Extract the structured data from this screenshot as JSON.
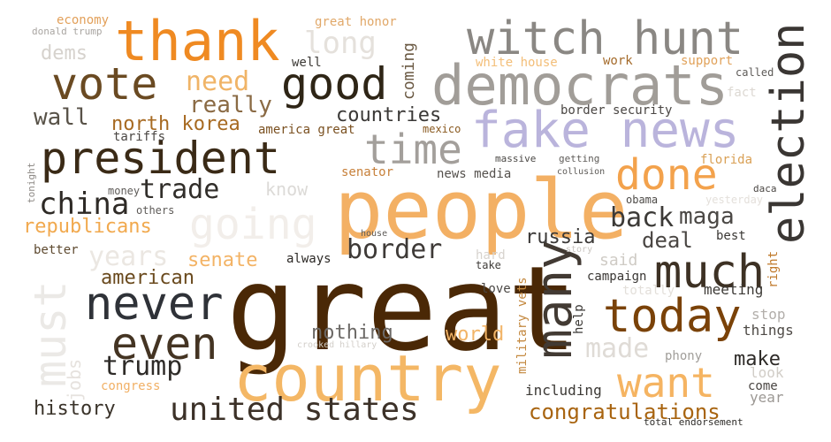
{
  "words": [
    {
      "id": "great",
      "text": "great",
      "color": "#4a2806",
      "size": 132,
      "rotate": false
    },
    {
      "id": "people",
      "text": "people",
      "color": "#f3b064",
      "size": 92,
      "rotate": false
    },
    {
      "id": "country",
      "text": "country",
      "color": "#f4b765",
      "size": 72,
      "rotate": false
    },
    {
      "id": "thank",
      "text": "thank",
      "color": "#ef8a22",
      "size": 62,
      "rotate": false
    },
    {
      "id": "democrats",
      "text": "democrats",
      "color": "#a19d98",
      "size": 62,
      "rotate": false
    },
    {
      "id": "fake_news",
      "text": "fake news",
      "color": "#bab4dc",
      "size": 56,
      "rotate": false
    },
    {
      "id": "witch_hunt",
      "text": "witch hunt",
      "color": "#8a8783",
      "size": 52,
      "rotate": false
    },
    {
      "id": "president",
      "text": "president",
      "color": "#3a2a16",
      "size": 50,
      "rotate": false
    },
    {
      "id": "vote",
      "text": "vote",
      "color": "#6a4a22",
      "size": 50,
      "rotate": false
    },
    {
      "id": "good",
      "text": "good",
      "color": "#2e2516",
      "size": 50,
      "rotate": false
    },
    {
      "id": "election",
      "text": "election",
      "color": "#3a3633",
      "size": 52,
      "rotate": true
    },
    {
      "id": "many",
      "text": "many",
      "color": "#423a33",
      "size": 56,
      "rotate": true
    },
    {
      "id": "much",
      "text": "much",
      "color": "#3d3124",
      "size": 52,
      "rotate": false
    },
    {
      "id": "today",
      "text": "today",
      "color": "#7a4208",
      "size": 52,
      "rotate": false
    },
    {
      "id": "never",
      "text": "never",
      "color": "#2f3238",
      "size": 52,
      "rotate": false
    },
    {
      "id": "even",
      "text": "even",
      "color": "#443423",
      "size": 50,
      "rotate": false
    },
    {
      "id": "must",
      "text": "must",
      "color": "#ebe9e6",
      "size": 50,
      "rotate": true
    },
    {
      "id": "time",
      "text": "time",
      "color": "#a39f9b",
      "size": 46,
      "rotate": false
    },
    {
      "id": "done",
      "text": "done",
      "color": "#f3a24c",
      "size": 48,
      "rotate": false
    },
    {
      "id": "going",
      "text": "going",
      "color": "#f2eeea",
      "size": 48,
      "rotate": false
    },
    {
      "id": "want",
      "text": "want",
      "color": "#f5b462",
      "size": 46,
      "rotate": false
    },
    {
      "id": "united_states",
      "text": "united states",
      "color": "#3c3128",
      "size": 36,
      "rotate": false
    },
    {
      "id": "long",
      "text": "long",
      "color": "#e5e1dc",
      "size": 34,
      "rotate": false
    },
    {
      "id": "need",
      "text": "need",
      "color": "#f0b467",
      "size": 30,
      "rotate": false
    },
    {
      "id": "really",
      "text": "really",
      "color": "#8a6a44",
      "size": 26,
      "rotate": false
    },
    {
      "id": "wall",
      "text": "wall",
      "color": "#585248",
      "size": 26,
      "rotate": false
    },
    {
      "id": "north_korea",
      "text": "north korea",
      "color": "#a76a22",
      "size": 22,
      "rotate": false
    },
    {
      "id": "countries",
      "text": "countries",
      "color": "#3a3836",
      "size": 22,
      "rotate": false
    },
    {
      "id": "china",
      "text": "china",
      "color": "#2e2a26",
      "size": 34,
      "rotate": false
    },
    {
      "id": "trade",
      "text": "trade",
      "color": "#312e2a",
      "size": 30,
      "rotate": false
    },
    {
      "id": "know",
      "text": "know",
      "color": "#dcdad7",
      "size": 20,
      "rotate": false
    },
    {
      "id": "back",
      "text": "back",
      "color": "#3c3a37",
      "size": 30,
      "rotate": false
    },
    {
      "id": "maga",
      "text": "maga",
      "color": "#4b4845",
      "size": 26,
      "rotate": false
    },
    {
      "id": "border",
      "text": "border",
      "color": "#3e3a37",
      "size": 30,
      "rotate": false
    },
    {
      "id": "deal",
      "text": "deal",
      "color": "#4a4643",
      "size": 24,
      "rotate": false
    },
    {
      "id": "russia",
      "text": "russia",
      "color": "#3a3836",
      "size": 22,
      "rotate": false
    },
    {
      "id": "republicans",
      "text": "republicans",
      "color": "#f1a94e",
      "size": 22,
      "rotate": false
    },
    {
      "id": "years",
      "text": "years",
      "color": "#ebe7e2",
      "size": 30,
      "rotate": false
    },
    {
      "id": "senate",
      "text": "senate",
      "color": "#f3b365",
      "size": 22,
      "rotate": false
    },
    {
      "id": "american",
      "text": "american",
      "color": "#6a4a1e",
      "size": 22,
      "rotate": false
    },
    {
      "id": "trump",
      "text": "trump",
      "color": "#2e2b28",
      "size": 30,
      "rotate": false
    },
    {
      "id": "nothing",
      "text": "nothing",
      "color": "#6c6966",
      "size": 22,
      "rotate": false
    },
    {
      "id": "world",
      "text": "world",
      "color": "#f2b467",
      "size": 22,
      "rotate": false
    },
    {
      "id": "made",
      "text": "made",
      "color": "#dfdbd6",
      "size": 30,
      "rotate": false
    },
    {
      "id": "said",
      "text": "said",
      "color": "#cfcbc5",
      "size": 18,
      "rotate": false
    },
    {
      "id": "campaign",
      "text": "campaign",
      "color": "#3a3734",
      "size": 14,
      "rotate": false
    },
    {
      "id": "meeting",
      "text": "meeting",
      "color": "#3c3935",
      "size": 16,
      "rotate": false
    },
    {
      "id": "history",
      "text": "history",
      "color": "#3a332a",
      "size": 22,
      "rotate": false
    },
    {
      "id": "jobs",
      "text": "jobs",
      "color": "#e6e2de",
      "size": 20,
      "rotate": true
    },
    {
      "id": "congress",
      "text": "congress",
      "color": "#f1b065",
      "size": 14,
      "rotate": false
    },
    {
      "id": "congratulations",
      "text": "congratulations",
      "color": "#a86410",
      "size": 24,
      "rotate": false
    },
    {
      "id": "total_endorsement",
      "text": "total endorsement",
      "color": "#2e2c29",
      "size": 11,
      "rotate": false
    },
    {
      "id": "make",
      "text": "make",
      "color": "#2d2a27",
      "size": 22,
      "rotate": false
    },
    {
      "id": "come",
      "text": "come",
      "color": "#4a4643",
      "size": 14,
      "rotate": false
    },
    {
      "id": "year",
      "text": "year",
      "color": "#9c9894",
      "size": 16,
      "rotate": false
    },
    {
      "id": "look",
      "text": "look",
      "color": "#d1cdc7",
      "size": 16,
      "rotate": false
    },
    {
      "id": "phony",
      "text": "phony",
      "color": "#a19e9a",
      "size": 14,
      "rotate": false
    },
    {
      "id": "including",
      "text": "including",
      "color": "#3c3935",
      "size": 16,
      "rotate": false
    },
    {
      "id": "things",
      "text": "things",
      "color": "#4e4a46",
      "size": 16,
      "rotate": false
    },
    {
      "id": "stop",
      "text": "stop",
      "color": "#b2aeaa",
      "size": 16,
      "rotate": false
    },
    {
      "id": "help",
      "text": "help",
      "color": "#3a3734",
      "size": 14,
      "rotate": true
    },
    {
      "id": "military_vets",
      "text": "military vets",
      "color": "#c48940",
      "size": 14,
      "rotate": true
    },
    {
      "id": "love",
      "text": "love",
      "color": "#4a4744",
      "size": 14,
      "rotate": false
    },
    {
      "id": "take",
      "text": "take",
      "color": "#3f3c39",
      "size": 12,
      "rotate": false
    },
    {
      "id": "hard",
      "text": "hard",
      "color": "#d7d3ce",
      "size": 14,
      "rotate": false
    },
    {
      "id": "story",
      "text": "story",
      "color": "#c9c5c0",
      "size": 10,
      "rotate": false
    },
    {
      "id": "totally",
      "text": "totally",
      "color": "#e3dfda",
      "size": 14,
      "rotate": false
    },
    {
      "id": "always",
      "text": "always",
      "color": "#2c2926",
      "size": 14,
      "rotate": false
    },
    {
      "id": "crooked_hillary",
      "text": "crooked hillary",
      "color": "#d3cfca",
      "size": 10,
      "rotate": false
    },
    {
      "id": "better",
      "text": "better",
      "color": "#5e4a30",
      "size": 14,
      "rotate": false
    },
    {
      "id": "house",
      "text": "house",
      "color": "#5e5b58",
      "size": 10,
      "rotate": false
    },
    {
      "id": "others",
      "text": "others",
      "color": "#5e5b58",
      "size": 12,
      "rotate": false
    },
    {
      "id": "money",
      "text": "money",
      "color": "#5e5b58",
      "size": 12,
      "rotate": false
    },
    {
      "id": "tonight",
      "text": "tonight",
      "color": "#8d8985",
      "size": 11,
      "rotate": true
    },
    {
      "id": "tariffs",
      "text": "tariffs",
      "color": "#4a4643",
      "size": 14,
      "rotate": false
    },
    {
      "id": "america_great",
      "text": "america great",
      "color": "#7a5020",
      "size": 14,
      "rotate": false
    },
    {
      "id": "mexico",
      "text": "mexico",
      "color": "#8a5a20",
      "size": 12,
      "rotate": false
    },
    {
      "id": "senator",
      "text": "senator",
      "color": "#c7803a",
      "size": 14,
      "rotate": false
    },
    {
      "id": "news_media",
      "text": "news media",
      "color": "#55514d",
      "size": 14,
      "rotate": false
    },
    {
      "id": "massive",
      "text": "massive",
      "color": "#4a4744",
      "size": 11,
      "rotate": false
    },
    {
      "id": "getting",
      "text": "getting",
      "color": "#5e5b58",
      "size": 11,
      "rotate": false
    },
    {
      "id": "collusion",
      "text": "collusion",
      "color": "#5e5b58",
      "size": 10,
      "rotate": false
    },
    {
      "id": "obama",
      "text": "obama",
      "color": "#4e4b48",
      "size": 12,
      "rotate": false
    },
    {
      "id": "yesterday",
      "text": "yesterday",
      "color": "#e4e0db",
      "size": 12,
      "rotate": false
    },
    {
      "id": "florida",
      "text": "florida",
      "color": "#d9a055",
      "size": 14,
      "rotate": false
    },
    {
      "id": "daca",
      "text": "daca",
      "color": "#4a4643",
      "size": 11,
      "rotate": false
    },
    {
      "id": "best",
      "text": "best",
      "color": "#3a3734",
      "size": 14,
      "rotate": false
    },
    {
      "id": "right",
      "text": "right",
      "color": "#c07a2c",
      "size": 14,
      "rotate": true
    },
    {
      "id": "border_security",
      "text": "border security",
      "color": "#4a4643",
      "size": 14,
      "rotate": false
    },
    {
      "id": "fact",
      "text": "fact",
      "color": "#dcd8d2",
      "size": 14,
      "rotate": false
    },
    {
      "id": "called",
      "text": "called",
      "color": "#5e5b58",
      "size": 12,
      "rotate": false
    },
    {
      "id": "support",
      "text": "support",
      "color": "#e1a25a",
      "size": 14,
      "rotate": false
    },
    {
      "id": "work",
      "text": "work",
      "color": "#a46a2a",
      "size": 14,
      "rotate": false
    },
    {
      "id": "white_house",
      "text": "white house",
      "color": "#f3be78",
      "size": 14,
      "rotate": false
    },
    {
      "id": "coming",
      "text": "coming",
      "color": "#6b5a44",
      "size": 18,
      "rotate": true
    },
    {
      "id": "great_honor",
      "text": "great honor",
      "color": "#e1a869",
      "size": 14,
      "rotate": false
    },
    {
      "id": "well",
      "text": "well",
      "color": "#3c3935",
      "size": 14,
      "rotate": false
    },
    {
      "id": "economy",
      "text": "economy",
      "color": "#e2a05a",
      "size": 14,
      "rotate": false
    },
    {
      "id": "donald_trump",
      "text": "donald trump",
      "color": "#a9a5a1",
      "size": 11,
      "rotate": false
    },
    {
      "id": "dems",
      "text": "dems",
      "color": "#d6d2cd",
      "size": 22,
      "rotate": false
    }
  ]
}
